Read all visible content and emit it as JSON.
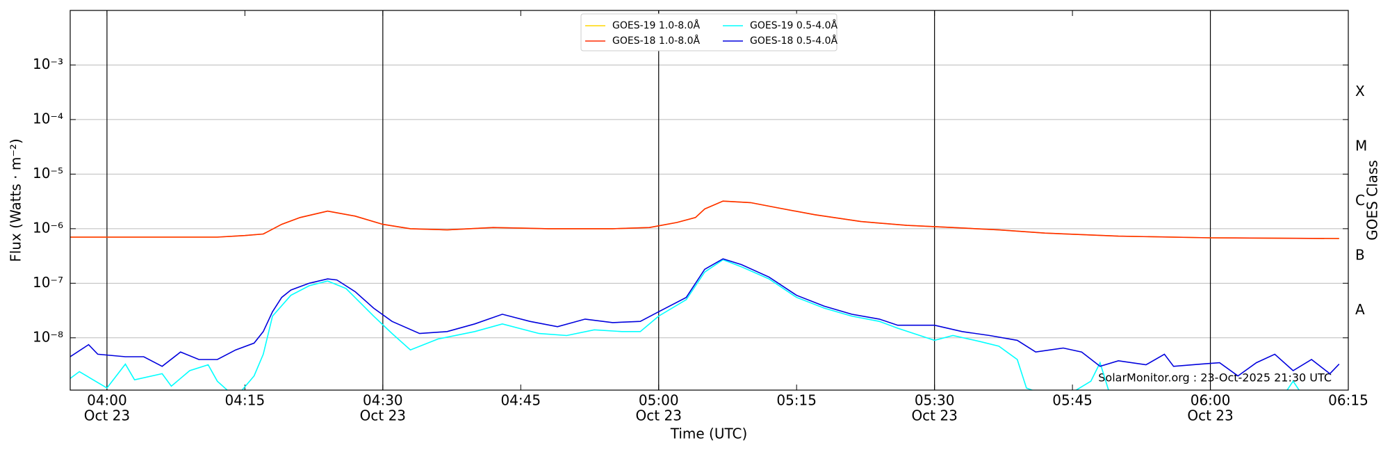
{
  "chart_data": {
    "type": "line",
    "xlabel": "Time (UTC)",
    "ylabel": "Flux (Watts · m⁻²)",
    "y2label": "GOES Class",
    "annotation": "SolarMonitor.org : 23-Oct-2025 21:30 UTC",
    "log_y": true,
    "grid": true,
    "legend": "top-center",
    "xlim": [
      "03:56",
      "06:15"
    ],
    "xticks": [
      {
        "value": "04:00",
        "label": "04:00",
        "date": "Oct 23"
      },
      {
        "value": "04:15",
        "label": "04:15"
      },
      {
        "value": "04:30",
        "label": "04:30",
        "date": "Oct 23"
      },
      {
        "value": "04:45",
        "label": "04:45"
      },
      {
        "value": "05:00",
        "label": "05:00",
        "date": "Oct 23"
      },
      {
        "value": "05:15",
        "label": "05:15"
      },
      {
        "value": "05:30",
        "label": "05:30",
        "date": "Oct 23"
      },
      {
        "value": "05:45",
        "label": "05:45"
      },
      {
        "value": "06:00",
        "label": "06:00",
        "date": "Oct 23"
      },
      {
        "value": "06:15",
        "label": "06:15"
      }
    ],
    "ylim": [
      1.1e-09,
      0.01
    ],
    "yticks": [
      {
        "value": 1e-08,
        "label": "10⁻⁸"
      },
      {
        "value": 1e-07,
        "label": "10⁻⁷"
      },
      {
        "value": 1e-06,
        "label": "10⁻⁶"
      },
      {
        "value": 1e-05,
        "label": "10⁻⁵"
      },
      {
        "value": 0.0001,
        "label": "10⁻⁴"
      },
      {
        "value": 0.001,
        "label": "10⁻³"
      }
    ],
    "y2ticks": [
      {
        "value": 3.16e-08,
        "label": "A"
      },
      {
        "value": 3.16e-07,
        "label": "B"
      },
      {
        "value": 3.16e-06,
        "label": "C"
      },
      {
        "value": 3.16e-05,
        "label": "M"
      },
      {
        "value": 0.000316,
        "label": "X"
      }
    ],
    "series": [
      {
        "name": "GOES-19 1.0-8.0Å",
        "color": "#ffd700",
        "x": [
          "03:56",
          "04:05",
          "04:12",
          "04:15",
          "04:17",
          "04:19",
          "04:21",
          "04:24",
          "04:27",
          "04:30",
          "04:33",
          "04:37",
          "04:42",
          "04:48",
          "04:55",
          "04:59",
          "05:02",
          "05:04",
          "05:05",
          "05:07",
          "05:10",
          "05:13",
          "05:17",
          "05:22",
          "05:27",
          "05:32",
          "05:37",
          "05:42",
          "05:50",
          "06:00",
          "06:14"
        ],
        "values": [
          7e-07,
          7e-07,
          7e-07,
          7.5e-07,
          8e-07,
          1.2e-06,
          1.6e-06,
          2.1e-06,
          1.7e-06,
          1.2e-06,
          1e-06,
          9.5e-07,
          1.05e-06,
          1e-06,
          1e-06,
          1.05e-06,
          1.3e-06,
          1.6e-06,
          2.3e-06,
          3.2e-06,
          3e-06,
          2.4e-06,
          1.8e-06,
          1.35e-06,
          1.15e-06,
          1.05e-06,
          9.5e-07,
          8.3e-07,
          7.3e-07,
          6.8e-07,
          6.6e-07
        ]
      },
      {
        "name": "GOES-18 1.0-8.0Å",
        "color": "#ff2a00",
        "x": [
          "03:56",
          "04:05",
          "04:12",
          "04:15",
          "04:17",
          "04:19",
          "04:21",
          "04:24",
          "04:27",
          "04:30",
          "04:33",
          "04:37",
          "04:42",
          "04:48",
          "04:55",
          "04:59",
          "05:02",
          "05:04",
          "05:05",
          "05:07",
          "05:10",
          "05:13",
          "05:17",
          "05:22",
          "05:27",
          "05:32",
          "05:37",
          "05:42",
          "05:50",
          "06:00",
          "06:14"
        ],
        "values": [
          7e-07,
          7e-07,
          7e-07,
          7.5e-07,
          8e-07,
          1.2e-06,
          1.6e-06,
          2.1e-06,
          1.7e-06,
          1.2e-06,
          1e-06,
          9.5e-07,
          1.05e-06,
          1e-06,
          1e-06,
          1.05e-06,
          1.3e-06,
          1.6e-06,
          2.3e-06,
          3.2e-06,
          3e-06,
          2.4e-06,
          1.8e-06,
          1.35e-06,
          1.15e-06,
          1.05e-06,
          9.5e-07,
          8.3e-07,
          7.3e-07,
          6.8e-07,
          6.6e-07
        ]
      },
      {
        "name": "GOES-19 0.5-4.0Å",
        "color": "#00ffff",
        "x": [
          "03:56",
          "03:57",
          "04:00",
          "04:02",
          "04:03",
          "04:06",
          "04:07",
          "04:09",
          "04:11",
          "04:12",
          "04:14",
          "04:16",
          "04:17",
          "04:18",
          "04:20",
          "04:22",
          "04:24",
          "04:26",
          "04:29",
          "04:31",
          "04:33",
          "04:36",
          "04:40",
          "04:43",
          "04:47",
          "04:50",
          "04:53",
          "04:56",
          "04:58",
          "05:00",
          "05:03",
          "05:05",
          "05:07",
          "05:09",
          "05:12",
          "05:15",
          "05:18",
          "05:21",
          "05:24",
          "05:26",
          "05:30",
          "05:32",
          "05:35",
          "05:37",
          "05:39",
          "05:40",
          "05:42",
          "05:45",
          "05:47",
          "05:48",
          "05:49",
          "05:52",
          "06:00",
          "06:08",
          "06:09",
          "06:10",
          "06:14"
        ],
        "values": [
          1.8e-09,
          2.4e-09,
          1.2e-09,
          3.3e-09,
          1.7e-09,
          2.2e-09,
          1.3e-09,
          2.5e-09,
          3.2e-09,
          1.6e-09,
          8e-10,
          2e-09,
          5e-09,
          2.5e-08,
          6e-08,
          9e-08,
          1.1e-07,
          8e-08,
          2.5e-08,
          1.2e-08,
          6e-09,
          9.5e-09,
          1.3e-08,
          1.8e-08,
          1.2e-08,
          1.1e-08,
          1.4e-08,
          1.3e-08,
          1.3e-08,
          2.5e-08,
          5e-08,
          1.6e-07,
          2.7e-07,
          2e-07,
          1.2e-07,
          5.5e-08,
          3.5e-08,
          2.5e-08,
          2e-08,
          1.5e-08,
          9e-09,
          1.1e-08,
          8.5e-09,
          7e-09,
          4e-09,
          1.2e-09,
          9e-10,
          1e-09,
          1.6e-09,
          3.5e-09,
          1e-09,
          8e-10,
          8e-10,
          9e-10,
          1.6e-09,
          9e-10,
          9e-10
        ]
      },
      {
        "name": "GOES-18 0.5-4.0Å",
        "color": "#0000dd",
        "x": [
          "03:56",
          "03:58",
          "03:59",
          "04:02",
          "04:04",
          "04:06",
          "04:08",
          "04:10",
          "04:12",
          "04:14",
          "04:16",
          "04:17",
          "04:18",
          "04:19",
          "04:20",
          "04:22",
          "04:24",
          "04:25",
          "04:27",
          "04:29",
          "04:31",
          "04:34",
          "04:37",
          "04:40",
          "04:43",
          "04:46",
          "04:49",
          "04:52",
          "04:55",
          "04:58",
          "05:00",
          "05:03",
          "05:05",
          "05:07",
          "05:09",
          "05:12",
          "05:15",
          "05:18",
          "05:21",
          "05:24",
          "05:26",
          "05:30",
          "05:33",
          "05:36",
          "05:39",
          "05:41",
          "05:44",
          "05:46",
          "05:48",
          "05:50",
          "05:53",
          "05:55",
          "05:56",
          "05:59",
          "06:01",
          "06:03",
          "06:05",
          "06:07",
          "06:09",
          "06:11",
          "06:13",
          "06:14"
        ],
        "values": [
          4.5e-09,
          7.5e-09,
          5e-09,
          4.5e-09,
          4.5e-09,
          3e-09,
          5.5e-09,
          4e-09,
          4e-09,
          6e-09,
          8e-09,
          1.3e-08,
          3e-08,
          5.5e-08,
          7.5e-08,
          1e-07,
          1.2e-07,
          1.15e-07,
          7e-08,
          3.5e-08,
          2e-08,
          1.2e-08,
          1.3e-08,
          1.8e-08,
          2.7e-08,
          2e-08,
          1.6e-08,
          2.2e-08,
          1.9e-08,
          2e-08,
          3e-08,
          5.5e-08,
          1.8e-07,
          2.8e-07,
          2.2e-07,
          1.3e-07,
          6e-08,
          3.8e-08,
          2.7e-08,
          2.2e-08,
          1.7e-08,
          1.7e-08,
          1.3e-08,
          1.1e-08,
          9e-09,
          5.5e-09,
          6.5e-09,
          5.5e-09,
          3e-09,
          3.8e-09,
          3.2e-09,
          5e-09,
          3e-09,
          3.3e-09,
          3.5e-09,
          2e-09,
          3.5e-09,
          5e-09,
          2.5e-09,
          4e-09,
          2.2e-09,
          3.3e-09
        ]
      }
    ]
  }
}
